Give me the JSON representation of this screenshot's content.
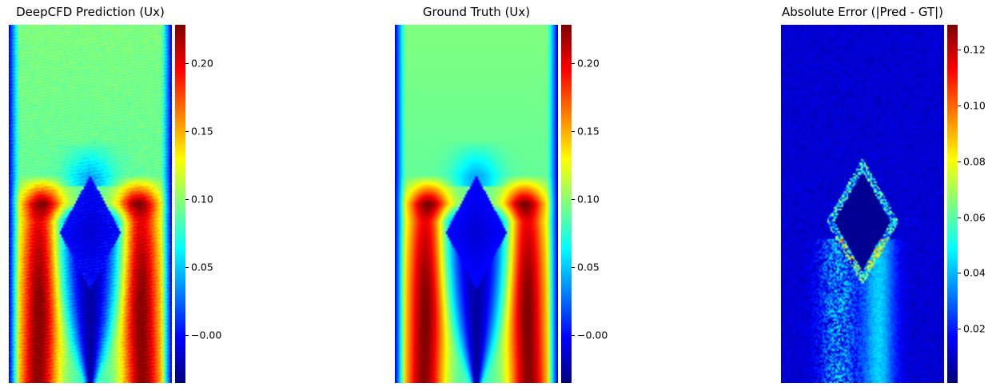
{
  "chart_data": [
    {
      "type": "heatmap",
      "title": "DeepCFD Prediction (Ux)",
      "colormap": "jet",
      "colorbar": {
        "min": -0.035,
        "max": 0.228,
        "ticks": [
          -0.0,
          0.05,
          0.1,
          0.15,
          0.2
        ],
        "tick_labels": [
          "−0.00",
          "0.05",
          "0.10",
          "0.15",
          "0.20"
        ]
      }
    },
    {
      "type": "heatmap",
      "title": "Ground Truth (Ux)",
      "colormap": "jet",
      "colorbar": {
        "min": -0.035,
        "max": 0.228,
        "ticks": [
          -0.0,
          0.05,
          0.1,
          0.15,
          0.2
        ],
        "tick_labels": [
          "−0.00",
          "0.05",
          "0.10",
          "0.15",
          "0.20"
        ]
      }
    },
    {
      "type": "heatmap",
      "title": "Absolute Error (|Pred - GT|)",
      "colormap": "jet",
      "colorbar": {
        "min": 0.0005,
        "max": 0.129,
        "ticks": [
          0.02,
          0.04,
          0.06,
          0.08,
          0.1,
          0.12
        ],
        "tick_labels": [
          "0.02",
          "0.04",
          "0.06",
          "0.08",
          "0.10",
          "0.12"
        ]
      }
    }
  ]
}
